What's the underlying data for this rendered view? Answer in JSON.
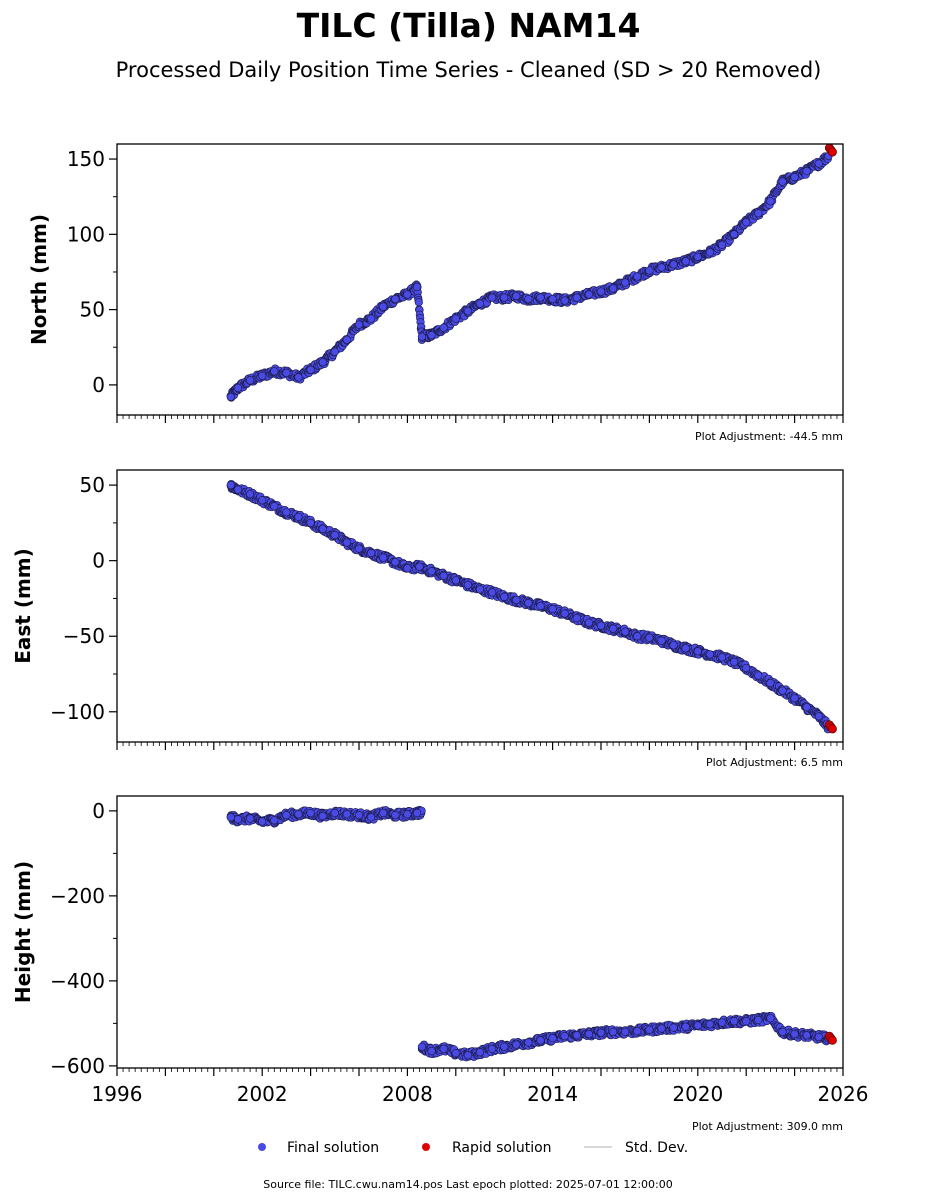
{
  "title": "TILC (Tilla) NAM14",
  "subtitle": "Processed Daily Position Time Series - Cleaned (SD > 20 Removed)",
  "colors": {
    "final": "#4a4ae6",
    "rapid": "#dd0000",
    "stddev": "#cccccc"
  },
  "legend": {
    "final": "Final solution",
    "rapid": "Rapid solution",
    "stddev": "Std. Dev."
  },
  "source": "Source file: TILC.cwu.nam14.pos  Last epoch plotted: 2025-07-01 12:00:00",
  "chart_data": [
    {
      "type": "scatter",
      "ylabel": "North (mm)",
      "adjustment": "Plot Adjustment: -44.5 mm",
      "xlim": [
        1996,
        2026
      ],
      "ylim": [
        -20,
        160
      ],
      "yticks": [
        0,
        50,
        100,
        150
      ],
      "series": [
        {
          "name": "Final solution",
          "x": [
            2000.7,
            2001.0,
            2001.5,
            2002.0,
            2002.5,
            2003.0,
            2003.5,
            2004.0,
            2004.5,
            2005.0,
            2005.5,
            2006.0,
            2006.5,
            2007.0,
            2007.5,
            2008.0,
            2008.4,
            2008.6,
            2009.0,
            2009.5,
            2010.0,
            2010.5,
            2011.0,
            2011.5,
            2012.0,
            2012.5,
            2013.0,
            2013.5,
            2014.0,
            2014.5,
            2015.0,
            2015.5,
            2016.0,
            2016.5,
            2017.0,
            2017.5,
            2018.0,
            2018.5,
            2019.0,
            2019.5,
            2020.0,
            2020.5,
            2021.0,
            2021.5,
            2022.0,
            2022.5,
            2023.0,
            2023.5,
            2024.0,
            2024.5,
            2025.0,
            2025.4
          ],
          "values": [
            -8,
            -2,
            3,
            6,
            9,
            8,
            5,
            10,
            15,
            22,
            30,
            40,
            44,
            52,
            57,
            60,
            65,
            32,
            33,
            38,
            44,
            49,
            54,
            58,
            58,
            59,
            57,
            58,
            57,
            56,
            58,
            60,
            62,
            64,
            68,
            72,
            76,
            78,
            80,
            82,
            85,
            88,
            93,
            100,
            108,
            114,
            122,
            135,
            138,
            142,
            147,
            152
          ]
        },
        {
          "name": "Rapid solution",
          "x": [
            2025.5
          ],
          "values": [
            156
          ]
        }
      ]
    },
    {
      "type": "scatter",
      "ylabel": "East (mm)",
      "adjustment": "Plot Adjustment: 6.5 mm",
      "xlim": [
        1996,
        2026
      ],
      "ylim": [
        -120,
        60
      ],
      "yticks": [
        50,
        0,
        -50,
        -100
      ],
      "series": [
        {
          "name": "Final solution",
          "x": [
            2000.7,
            2001.0,
            2001.5,
            2002.0,
            2002.5,
            2003.0,
            2003.5,
            2004.0,
            2004.5,
            2005.0,
            2005.5,
            2006.0,
            2006.5,
            2007.0,
            2007.5,
            2008.0,
            2008.5,
            2009.0,
            2009.5,
            2010.0,
            2010.5,
            2011.0,
            2011.5,
            2012.0,
            2012.5,
            2013.0,
            2013.5,
            2014.0,
            2014.5,
            2015.0,
            2015.5,
            2016.0,
            2016.5,
            2017.0,
            2017.5,
            2018.0,
            2018.5,
            2019.0,
            2019.5,
            2020.0,
            2020.5,
            2021.0,
            2021.5,
            2022.0,
            2022.5,
            2023.0,
            2023.5,
            2024.0,
            2024.5,
            2025.0,
            2025.4
          ],
          "values": [
            50,
            47,
            44,
            40,
            36,
            32,
            29,
            25,
            21,
            17,
            12,
            8,
            5,
            2,
            -1,
            -5,
            -4,
            -7,
            -10,
            -13,
            -16,
            -19,
            -21,
            -24,
            -26,
            -28,
            -30,
            -32,
            -35,
            -38,
            -41,
            -43,
            -45,
            -47,
            -50,
            -51,
            -53,
            -56,
            -58,
            -60,
            -62,
            -64,
            -67,
            -71,
            -76,
            -81,
            -86,
            -91,
            -97,
            -103,
            -110
          ]
        },
        {
          "name": "Rapid solution",
          "x": [
            2025.5
          ],
          "values": [
            -110
          ]
        }
      ]
    },
    {
      "type": "scatter",
      "ylabel": "Height (mm)",
      "adjustment": "Plot Adjustment: 309.0 mm",
      "xlim": [
        1996,
        2026
      ],
      "ylim": [
        -605,
        35
      ],
      "yticks": [
        0,
        -200,
        -400,
        -600
      ],
      "xticks": [
        "1996",
        "2002",
        "2008",
        "2014",
        "2020",
        "2026"
      ],
      "series": [
        {
          "name": "Final solution",
          "x": [
            2000.7,
            2001.0,
            2001.5,
            2002.0,
            2002.5,
            2003.0,
            2003.5,
            2004.0,
            2004.5,
            2005.0,
            2005.5,
            2006.0,
            2006.5,
            2007.0,
            2007.5,
            2008.0,
            2008.4,
            2008.6,
            2009.0,
            2009.5,
            2010.0,
            2010.5,
            2011.0,
            2011.5,
            2012.0,
            2012.5,
            2013.0,
            2013.5,
            2014.0,
            2014.5,
            2015.0,
            2015.5,
            2016.0,
            2016.5,
            2017.0,
            2017.5,
            2018.0,
            2018.5,
            2019.0,
            2019.5,
            2020.0,
            2020.5,
            2021.0,
            2021.5,
            2022.0,
            2022.5,
            2023.0,
            2023.5,
            2024.0,
            2024.5,
            2025.0,
            2025.4
          ],
          "values": [
            -15,
            -20,
            -18,
            -25,
            -22,
            -10,
            -8,
            -5,
            -12,
            -5,
            -8,
            -10,
            -15,
            -5,
            -10,
            -8,
            -5,
            -555,
            -565,
            -560,
            -570,
            -575,
            -568,
            -560,
            -555,
            -550,
            -545,
            -540,
            -535,
            -530,
            -528,
            -525,
            -522,
            -520,
            -520,
            -518,
            -515,
            -512,
            -510,
            -508,
            -505,
            -502,
            -498,
            -495,
            -495,
            -492,
            -488,
            -520,
            -525,
            -528,
            -532,
            -535
          ]
        },
        {
          "name": "Rapid solution",
          "x": [
            2025.5
          ],
          "values": [
            -535
          ]
        }
      ]
    }
  ]
}
